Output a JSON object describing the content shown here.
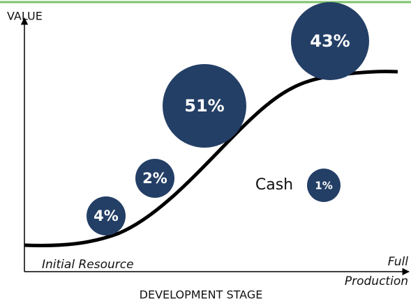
{
  "axes": {
    "y_label": "VALUE",
    "x_label": "DEVELOPMENT STAGE",
    "x_start": "Initial Resource",
    "x_end_line1": "Full",
    "x_end_line2": "Production"
  },
  "bubbles": [
    {
      "label": "4%"
    },
    {
      "label": "2%"
    },
    {
      "label": "51%"
    },
    {
      "label": "43%"
    },
    {
      "label": "1%",
      "caption": "Cash"
    }
  ]
}
